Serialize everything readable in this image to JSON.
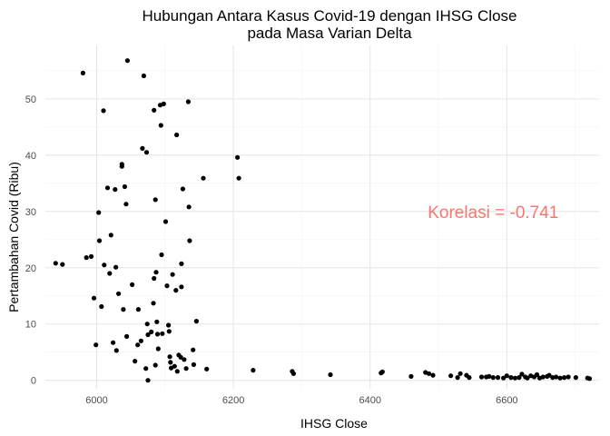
{
  "chart_data": {
    "type": "scatter",
    "title": "Hubungan Antara Kasus Covid-19 dengan IHSG Close",
    "subtitle": "pada Masa Varian Delta",
    "xlabel": "IHSG Close",
    "ylabel": "Pertambahan Covid (Ribu)",
    "xlim": [
      5925,
      6735
    ],
    "ylim": [
      -1.5,
      59.5
    ],
    "x_ticks": [
      6000,
      6200,
      6400,
      6600
    ],
    "y_ticks": [
      0,
      10,
      20,
      30,
      40,
      50
    ],
    "x_minor_ticks": [
      6100,
      6300,
      6500,
      6700
    ],
    "y_minor_ticks": [
      5,
      15,
      25,
      35,
      45,
      55
    ],
    "grid": true,
    "point_color": "#000000",
    "annotation": {
      "text": "Korelasi =  -0.741",
      "x": 6580,
      "y": 30,
      "color": "#F8766D"
    },
    "points": [
      {
        "x": 5940,
        "y": 20.8
      },
      {
        "x": 5950,
        "y": 20.6
      },
      {
        "x": 5980,
        "y": 54.6
      },
      {
        "x": 5985,
        "y": 21.8
      },
      {
        "x": 5992,
        "y": 22.0
      },
      {
        "x": 5996,
        "y": 14.6
      },
      {
        "x": 5999,
        "y": 6.3
      },
      {
        "x": 6003,
        "y": 29.8
      },
      {
        "x": 6004,
        "y": 24.8
      },
      {
        "x": 6007,
        "y": 13.1
      },
      {
        "x": 6010,
        "y": 47.9
      },
      {
        "x": 6011,
        "y": 20.5
      },
      {
        "x": 6016,
        "y": 34.2
      },
      {
        "x": 6019,
        "y": 19.0
      },
      {
        "x": 6021,
        "y": 25.8
      },
      {
        "x": 6024,
        "y": 6.7
      },
      {
        "x": 6027,
        "y": 33.9
      },
      {
        "x": 6028,
        "y": 20.1
      },
      {
        "x": 6029,
        "y": 5.3
      },
      {
        "x": 6032,
        "y": 15.4
      },
      {
        "x": 6037,
        "y": 38.4
      },
      {
        "x": 6037,
        "y": 38.0
      },
      {
        "x": 6039,
        "y": 12.6
      },
      {
        "x": 6041,
        "y": 34.4
      },
      {
        "x": 6043,
        "y": 31.3
      },
      {
        "x": 6044,
        "y": 7.8
      },
      {
        "x": 6045,
        "y": 56.8
      },
      {
        "x": 6052,
        "y": 17.0
      },
      {
        "x": 6056,
        "y": 3.4
      },
      {
        "x": 6060,
        "y": 6.3
      },
      {
        "x": 6061,
        "y": 12.6
      },
      {
        "x": 6065,
        "y": 7.0
      },
      {
        "x": 6067,
        "y": 41.2
      },
      {
        "x": 6069,
        "y": 54.1
      },
      {
        "x": 6072,
        "y": 2.1
      },
      {
        "x": 6073,
        "y": 40.5
      },
      {
        "x": 6074,
        "y": 10.0
      },
      {
        "x": 6075,
        "y": 8.1
      },
      {
        "x": 6075,
        "y": 0.0
      },
      {
        "x": 6080,
        "y": 8.6
      },
      {
        "x": 6083,
        "y": 13.7
      },
      {
        "x": 6084,
        "y": 18.1
      },
      {
        "x": 6084,
        "y": 48.0
      },
      {
        "x": 6086,
        "y": 32.1
      },
      {
        "x": 6086,
        "y": 2.7
      },
      {
        "x": 6087,
        "y": 19.2
      },
      {
        "x": 6088,
        "y": 10.4
      },
      {
        "x": 6089,
        "y": 8.2
      },
      {
        "x": 6090,
        "y": 5.6
      },
      {
        "x": 6093,
        "y": 48.9
      },
      {
        "x": 6094,
        "y": 45.3
      },
      {
        "x": 6095,
        "y": 22.3
      },
      {
        "x": 6096,
        "y": 8.3
      },
      {
        "x": 6098,
        "y": 49.1
      },
      {
        "x": 6101,
        "y": 28.2
      },
      {
        "x": 6103,
        "y": 16.8
      },
      {
        "x": 6105,
        "y": 9.8
      },
      {
        "x": 6106,
        "y": 8.7
      },
      {
        "x": 6107,
        "y": 4.2
      },
      {
        "x": 6108,
        "y": 3.2
      },
      {
        "x": 6109,
        "y": 2.2
      },
      {
        "x": 6111,
        "y": 18.8
      },
      {
        "x": 6114,
        "y": 2.5
      },
      {
        "x": 6116,
        "y": 16.0
      },
      {
        "x": 6117,
        "y": 43.6
      },
      {
        "x": 6118,
        "y": 1.6
      },
      {
        "x": 6120,
        "y": 4.5
      },
      {
        "x": 6123,
        "y": 4.1
      },
      {
        "x": 6124,
        "y": 16.6
      },
      {
        "x": 6124,
        "y": 20.7
      },
      {
        "x": 6126,
        "y": 34.0
      },
      {
        "x": 6128,
        "y": 3.7
      },
      {
        "x": 6131,
        "y": 2.1
      },
      {
        "x": 6134,
        "y": 49.5
      },
      {
        "x": 6135,
        "y": 30.8
      },
      {
        "x": 6136,
        "y": 24.8
      },
      {
        "x": 6141,
        "y": 5.4
      },
      {
        "x": 6142,
        "y": 2.8
      },
      {
        "x": 6146,
        "y": 10.5
      },
      {
        "x": 6156,
        "y": 35.9
      },
      {
        "x": 6161,
        "y": 2.0
      },
      {
        "x": 6206,
        "y": 39.6
      },
      {
        "x": 6208,
        "y": 35.9
      },
      {
        "x": 6229,
        "y": 1.8
      },
      {
        "x": 6286,
        "y": 1.6
      },
      {
        "x": 6288,
        "y": 1.2
      },
      {
        "x": 6342,
        "y": 1.0
      },
      {
        "x": 6416,
        "y": 1.3
      },
      {
        "x": 6418,
        "y": 1.5
      },
      {
        "x": 6460,
        "y": 0.7
      },
      {
        "x": 6481,
        "y": 1.4
      },
      {
        "x": 6486,
        "y": 1.2
      },
      {
        "x": 6492,
        "y": 0.9
      },
      {
        "x": 6518,
        "y": 0.8
      },
      {
        "x": 6528,
        "y": 0.5
      },
      {
        "x": 6532,
        "y": 1.2
      },
      {
        "x": 6541,
        "y": 0.9
      },
      {
        "x": 6545,
        "y": 0.5
      },
      {
        "x": 6563,
        "y": 0.6
      },
      {
        "x": 6570,
        "y": 0.6
      },
      {
        "x": 6574,
        "y": 0.7
      },
      {
        "x": 6580,
        "y": 0.5
      },
      {
        "x": 6587,
        "y": 0.5
      },
      {
        "x": 6595,
        "y": 0.4
      },
      {
        "x": 6600,
        "y": 0.8
      },
      {
        "x": 6606,
        "y": 0.5
      },
      {
        "x": 6612,
        "y": 0.4
      },
      {
        "x": 6618,
        "y": 0.5
      },
      {
        "x": 6622,
        "y": 1.1
      },
      {
        "x": 6627,
        "y": 0.6
      },
      {
        "x": 6630,
        "y": 0.4
      },
      {
        "x": 6635,
        "y": 0.8
      },
      {
        "x": 6640,
        "y": 0.6
      },
      {
        "x": 6644,
        "y": 1.0
      },
      {
        "x": 6648,
        "y": 0.4
      },
      {
        "x": 6653,
        "y": 0.6
      },
      {
        "x": 6659,
        "y": 0.7
      },
      {
        "x": 6662,
        "y": 0.9
      },
      {
        "x": 6667,
        "y": 0.5
      },
      {
        "x": 6672,
        "y": 0.6
      },
      {
        "x": 6678,
        "y": 0.4
      },
      {
        "x": 6684,
        "y": 0.5
      },
      {
        "x": 6690,
        "y": 0.6
      },
      {
        "x": 6701,
        "y": 0.5
      },
      {
        "x": 6718,
        "y": 0.4
      },
      {
        "x": 6721,
        "y": 0.3
      }
    ]
  }
}
